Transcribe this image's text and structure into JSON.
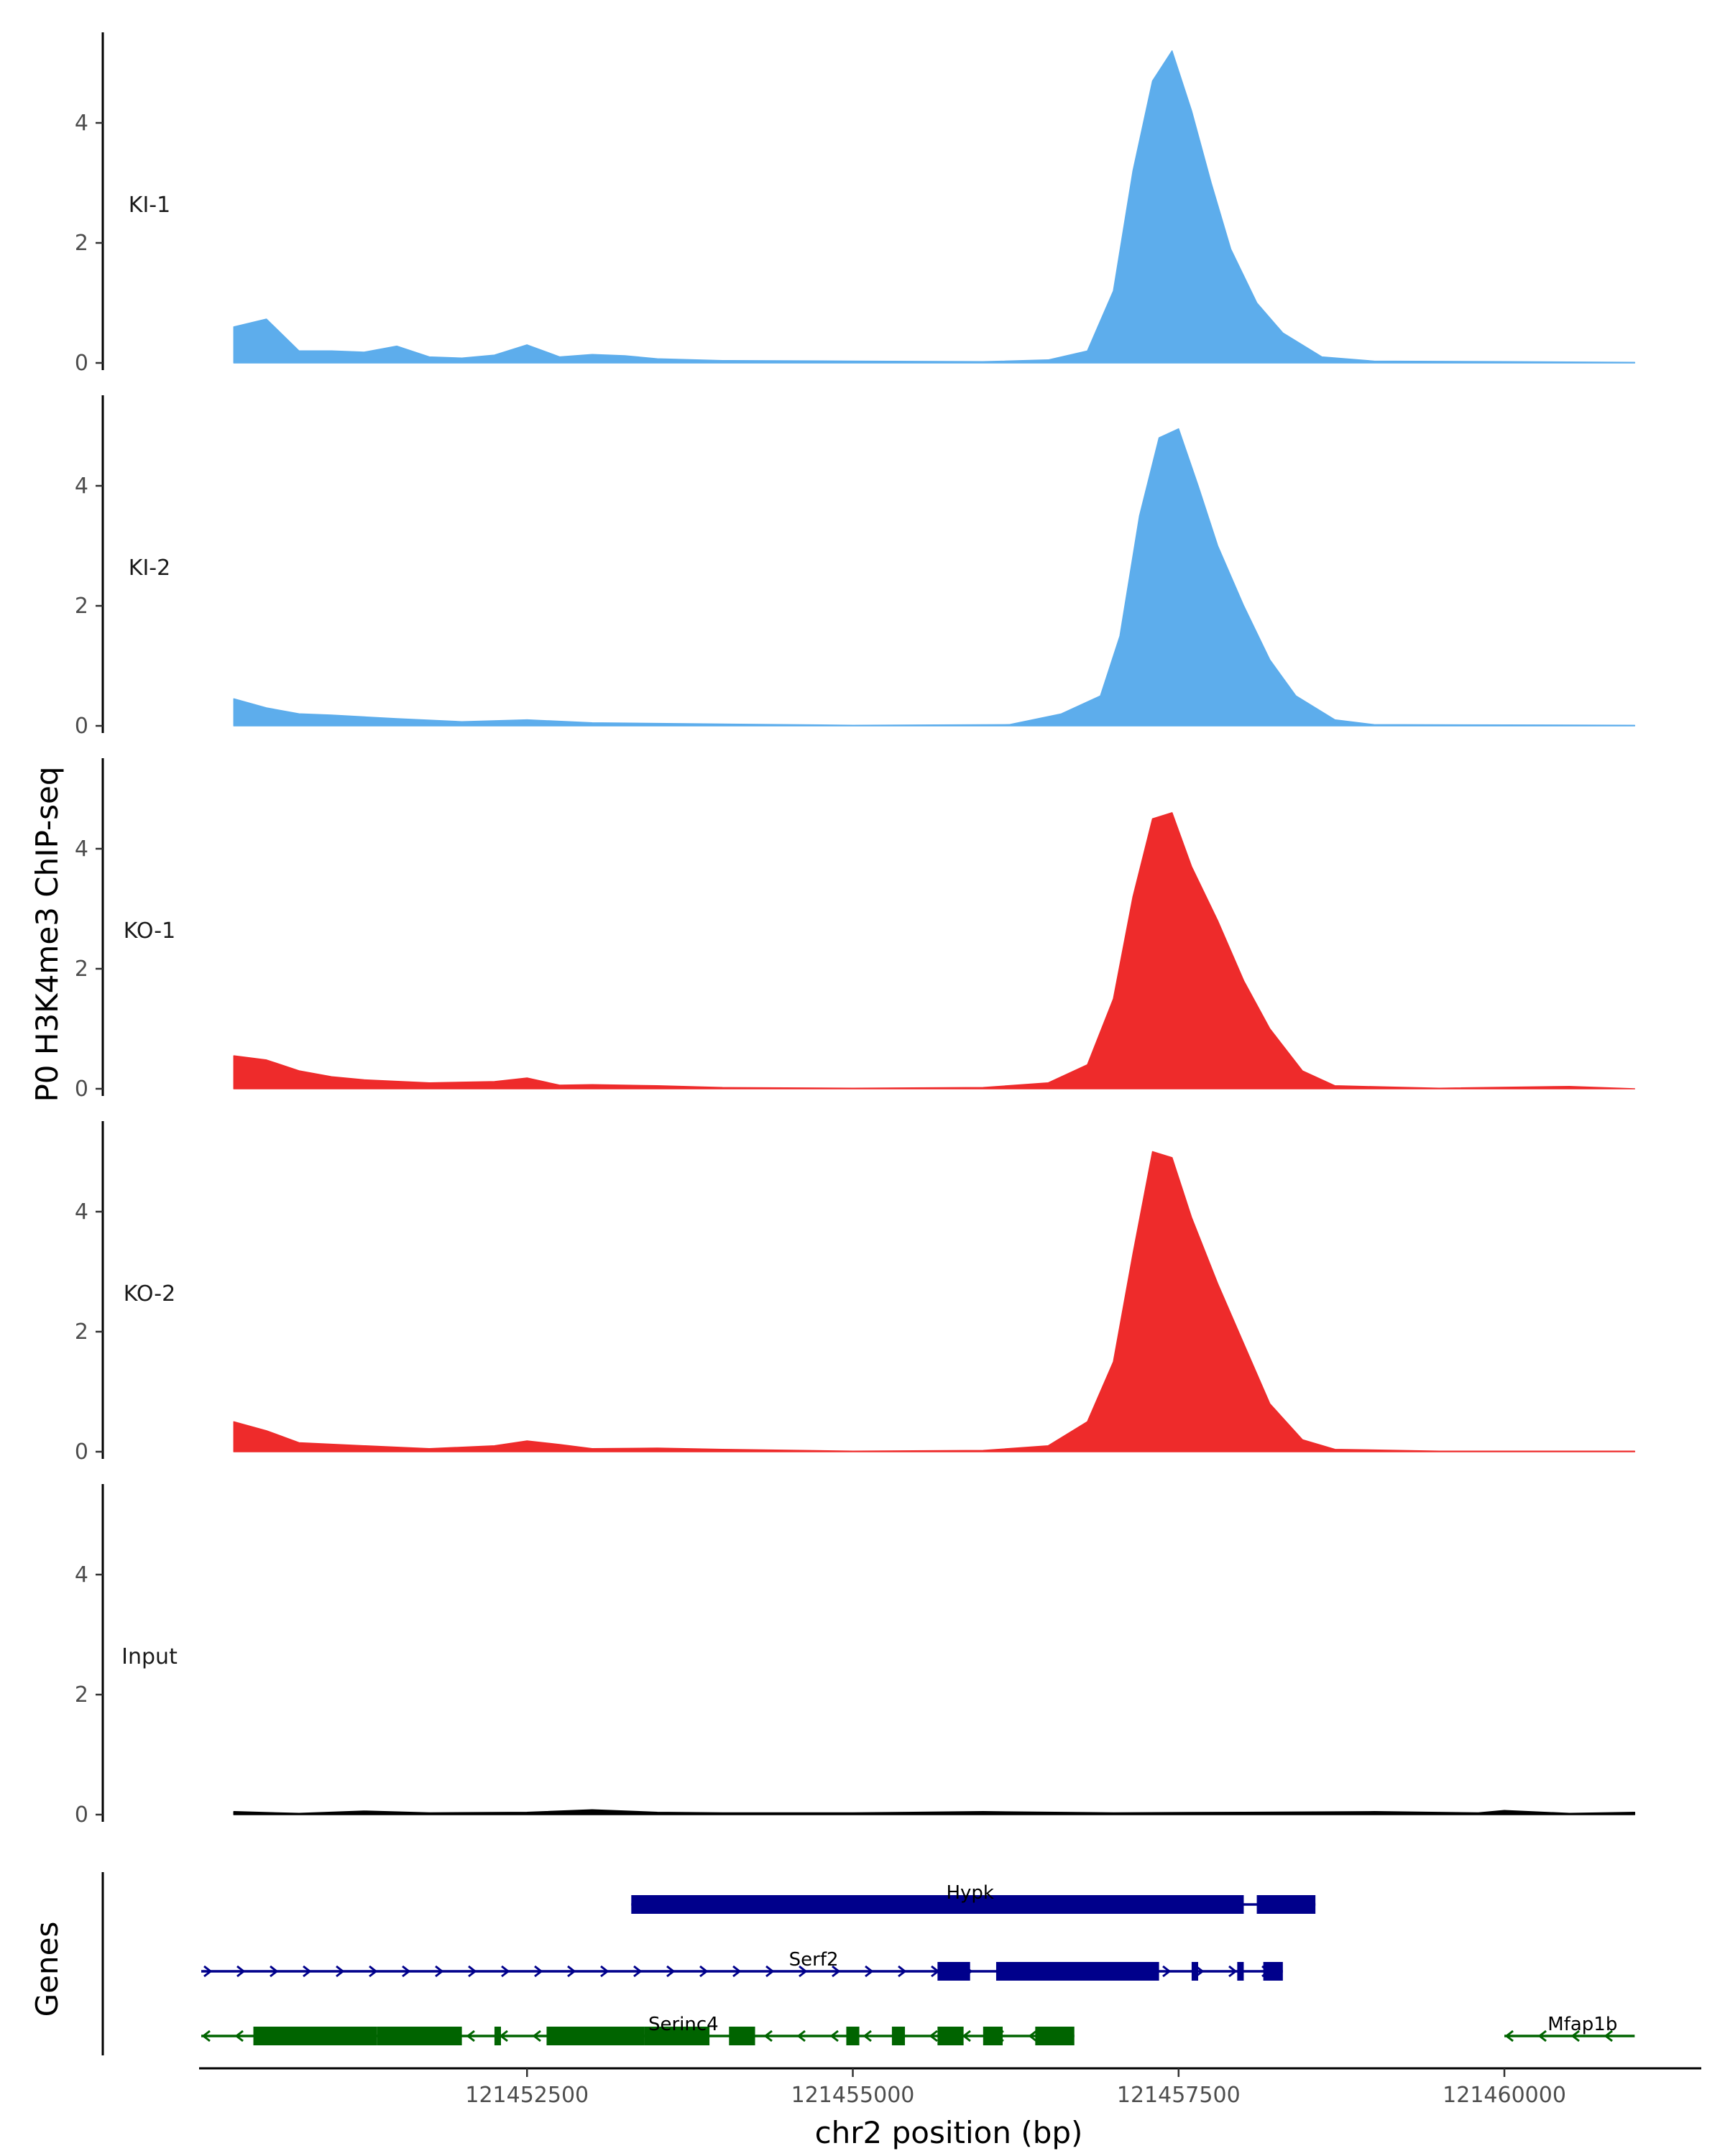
{
  "chart_data": {
    "type": "area",
    "ylabel": "P0 H3K4me3 ChIP-seq",
    "xlabel": "chr2 position (bp)",
    "xlim": [
      121450000,
      121461500
    ],
    "ylim": [
      0,
      5.5
    ],
    "y_ticks": [
      {
        "value": 0,
        "label": "0"
      },
      {
        "value": 2,
        "label": "2"
      },
      {
        "value": 4,
        "label": "4"
      }
    ],
    "x_ticks": [
      {
        "value": 121452500,
        "label": "121452500"
      },
      {
        "value": 121455000,
        "label": "121455000"
      },
      {
        "value": 121457500,
        "label": "121457500"
      },
      {
        "value": 121460000,
        "label": "121460000"
      }
    ],
    "tracks": [
      {
        "name": "KI-1",
        "color": "#5DADEC",
        "points": [
          [
            121450250,
            0.6
          ],
          [
            121450500,
            0.73
          ],
          [
            121450750,
            0.2
          ],
          [
            121451000,
            0.2
          ],
          [
            121451250,
            0.18
          ],
          [
            121451500,
            0.28
          ],
          [
            121451750,
            0.1
          ],
          [
            121452000,
            0.08
          ],
          [
            121452250,
            0.13
          ],
          [
            121452500,
            0.3
          ],
          [
            121452750,
            0.1
          ],
          [
            121453000,
            0.14
          ],
          [
            121453250,
            0.12
          ],
          [
            121453500,
            0.07
          ],
          [
            121454000,
            0.04
          ],
          [
            121455000,
            0.03
          ],
          [
            121456000,
            0.02
          ],
          [
            121456500,
            0.05
          ],
          [
            121456800,
            0.2
          ],
          [
            121457000,
            1.2
          ],
          [
            121457150,
            3.2
          ],
          [
            121457300,
            4.7
          ],
          [
            121457450,
            5.2
          ],
          [
            121457600,
            4.2
          ],
          [
            121457750,
            3.0
          ],
          [
            121457900,
            1.9
          ],
          [
            121458100,
            1.0
          ],
          [
            121458300,
            0.5
          ],
          [
            121458600,
            0.1
          ],
          [
            121459000,
            0.03
          ],
          [
            121460000,
            0.02
          ],
          [
            121461000,
            0.01
          ]
        ]
      },
      {
        "name": "KI-2",
        "color": "#5DADEC",
        "points": [
          [
            121450250,
            0.45
          ],
          [
            121450500,
            0.3
          ],
          [
            121450750,
            0.2
          ],
          [
            121451000,
            0.18
          ],
          [
            121451500,
            0.12
          ],
          [
            121452000,
            0.07
          ],
          [
            121452500,
            0.1
          ],
          [
            121453000,
            0.05
          ],
          [
            121454000,
            0.03
          ],
          [
            121455000,
            0.01
          ],
          [
            121456200,
            0.02
          ],
          [
            121456600,
            0.2
          ],
          [
            121456900,
            0.5
          ],
          [
            121457050,
            1.5
          ],
          [
            121457200,
            3.5
          ],
          [
            121457350,
            4.8
          ],
          [
            121457500,
            4.95
          ],
          [
            121457650,
            4.0
          ],
          [
            121457800,
            3.0
          ],
          [
            121458000,
            2.0
          ],
          [
            121458200,
            1.1
          ],
          [
            121458400,
            0.5
          ],
          [
            121458700,
            0.1
          ],
          [
            121459000,
            0.02
          ],
          [
            121461000,
            0.01
          ]
        ]
      },
      {
        "name": "KO-1",
        "color": "#EE2B2B",
        "points": [
          [
            121450250,
            0.55
          ],
          [
            121450500,
            0.48
          ],
          [
            121450750,
            0.3
          ],
          [
            121451000,
            0.2
          ],
          [
            121451250,
            0.15
          ],
          [
            121451750,
            0.1
          ],
          [
            121452250,
            0.12
          ],
          [
            121452500,
            0.18
          ],
          [
            121452750,
            0.06
          ],
          [
            121453000,
            0.07
          ],
          [
            121453500,
            0.05
          ],
          [
            121454000,
            0.02
          ],
          [
            121455000,
            0.01
          ],
          [
            121456000,
            0.02
          ],
          [
            121456500,
            0.1
          ],
          [
            121456800,
            0.4
          ],
          [
            121457000,
            1.5
          ],
          [
            121457150,
            3.2
          ],
          [
            121457300,
            4.5
          ],
          [
            121457450,
            4.6
          ],
          [
            121457600,
            3.7
          ],
          [
            121457800,
            2.8
          ],
          [
            121458000,
            1.8
          ],
          [
            121458200,
            1.0
          ],
          [
            121458450,
            0.3
          ],
          [
            121458700,
            0.05
          ],
          [
            121459500,
            0.01
          ],
          [
            121460500,
            0.04
          ],
          [
            121461000,
            0.0
          ]
        ]
      },
      {
        "name": "KO-2",
        "color": "#EE2B2B",
        "points": [
          [
            121450250,
            0.5
          ],
          [
            121450500,
            0.35
          ],
          [
            121450750,
            0.15
          ],
          [
            121451250,
            0.1
          ],
          [
            121451750,
            0.05
          ],
          [
            121452250,
            0.1
          ],
          [
            121452500,
            0.18
          ],
          [
            121452750,
            0.12
          ],
          [
            121453000,
            0.05
          ],
          [
            121453500,
            0.06
          ],
          [
            121454000,
            0.04
          ],
          [
            121455000,
            0.01
          ],
          [
            121456000,
            0.02
          ],
          [
            121456500,
            0.1
          ],
          [
            121456800,
            0.5
          ],
          [
            121457000,
            1.5
          ],
          [
            121457150,
            3.3
          ],
          [
            121457300,
            5.0
          ],
          [
            121457450,
            4.9
          ],
          [
            121457600,
            3.9
          ],
          [
            121457800,
            2.8
          ],
          [
            121458000,
            1.8
          ],
          [
            121458200,
            0.8
          ],
          [
            121458450,
            0.2
          ],
          [
            121458700,
            0.04
          ],
          [
            121459500,
            0.01
          ],
          [
            121461000,
            0.01
          ]
        ]
      },
      {
        "name": "Input",
        "color": "#000000",
        "points": [
          [
            121450250,
            0.05
          ],
          [
            121450750,
            0.02
          ],
          [
            121451250,
            0.06
          ],
          [
            121451750,
            0.03
          ],
          [
            121452500,
            0.04
          ],
          [
            121453000,
            0.08
          ],
          [
            121453500,
            0.04
          ],
          [
            121454000,
            0.03
          ],
          [
            121455000,
            0.03
          ],
          [
            121456000,
            0.05
          ],
          [
            121457000,
            0.03
          ],
          [
            121458000,
            0.04
          ],
          [
            121459000,
            0.05
          ],
          [
            121459800,
            0.03
          ],
          [
            121460000,
            0.07
          ],
          [
            121460500,
            0.02
          ],
          [
            121461000,
            0.04
          ]
        ]
      }
    ],
    "genes_track_label": "Genes",
    "genes": [
      {
        "name": "Hypk",
        "color": "#00008B",
        "strand": "+",
        "start": 121453300,
        "end": 121458550,
        "exons": [
          [
            121453300,
            121458000
          ],
          [
            121458100,
            121458550
          ]
        ]
      },
      {
        "name": "Serf2",
        "color": "#00008B",
        "strand": "+",
        "start": 121450000,
        "end": 121458300,
        "exons": [
          [
            121455650,
            121455900
          ],
          [
            121456100,
            121457350
          ],
          [
            121457600,
            121457650
          ],
          [
            121457950,
            121458000
          ],
          [
            121458150,
            121458300
          ]
        ]
      },
      {
        "name": "Serinc4",
        "color": "#006400",
        "strand": "-",
        "start": 121450000,
        "end": 121456700,
        "exons": [
          [
            121450400,
            121451350
          ],
          [
            121451350,
            121452000
          ],
          [
            121452250,
            121452300
          ],
          [
            121452650,
            121453400
          ],
          [
            121453400,
            121453900
          ],
          [
            121454050,
            121454250
          ],
          [
            121454950,
            121455050
          ],
          [
            121455300,
            121455400
          ],
          [
            121455650,
            121455850
          ],
          [
            121456000,
            121456150
          ],
          [
            121456400,
            121456700
          ]
        ]
      },
      {
        "name": "Mfap1b",
        "color": "#006400",
        "strand": "-",
        "start": 121460000,
        "end": 121461000,
        "exons": []
      }
    ]
  }
}
